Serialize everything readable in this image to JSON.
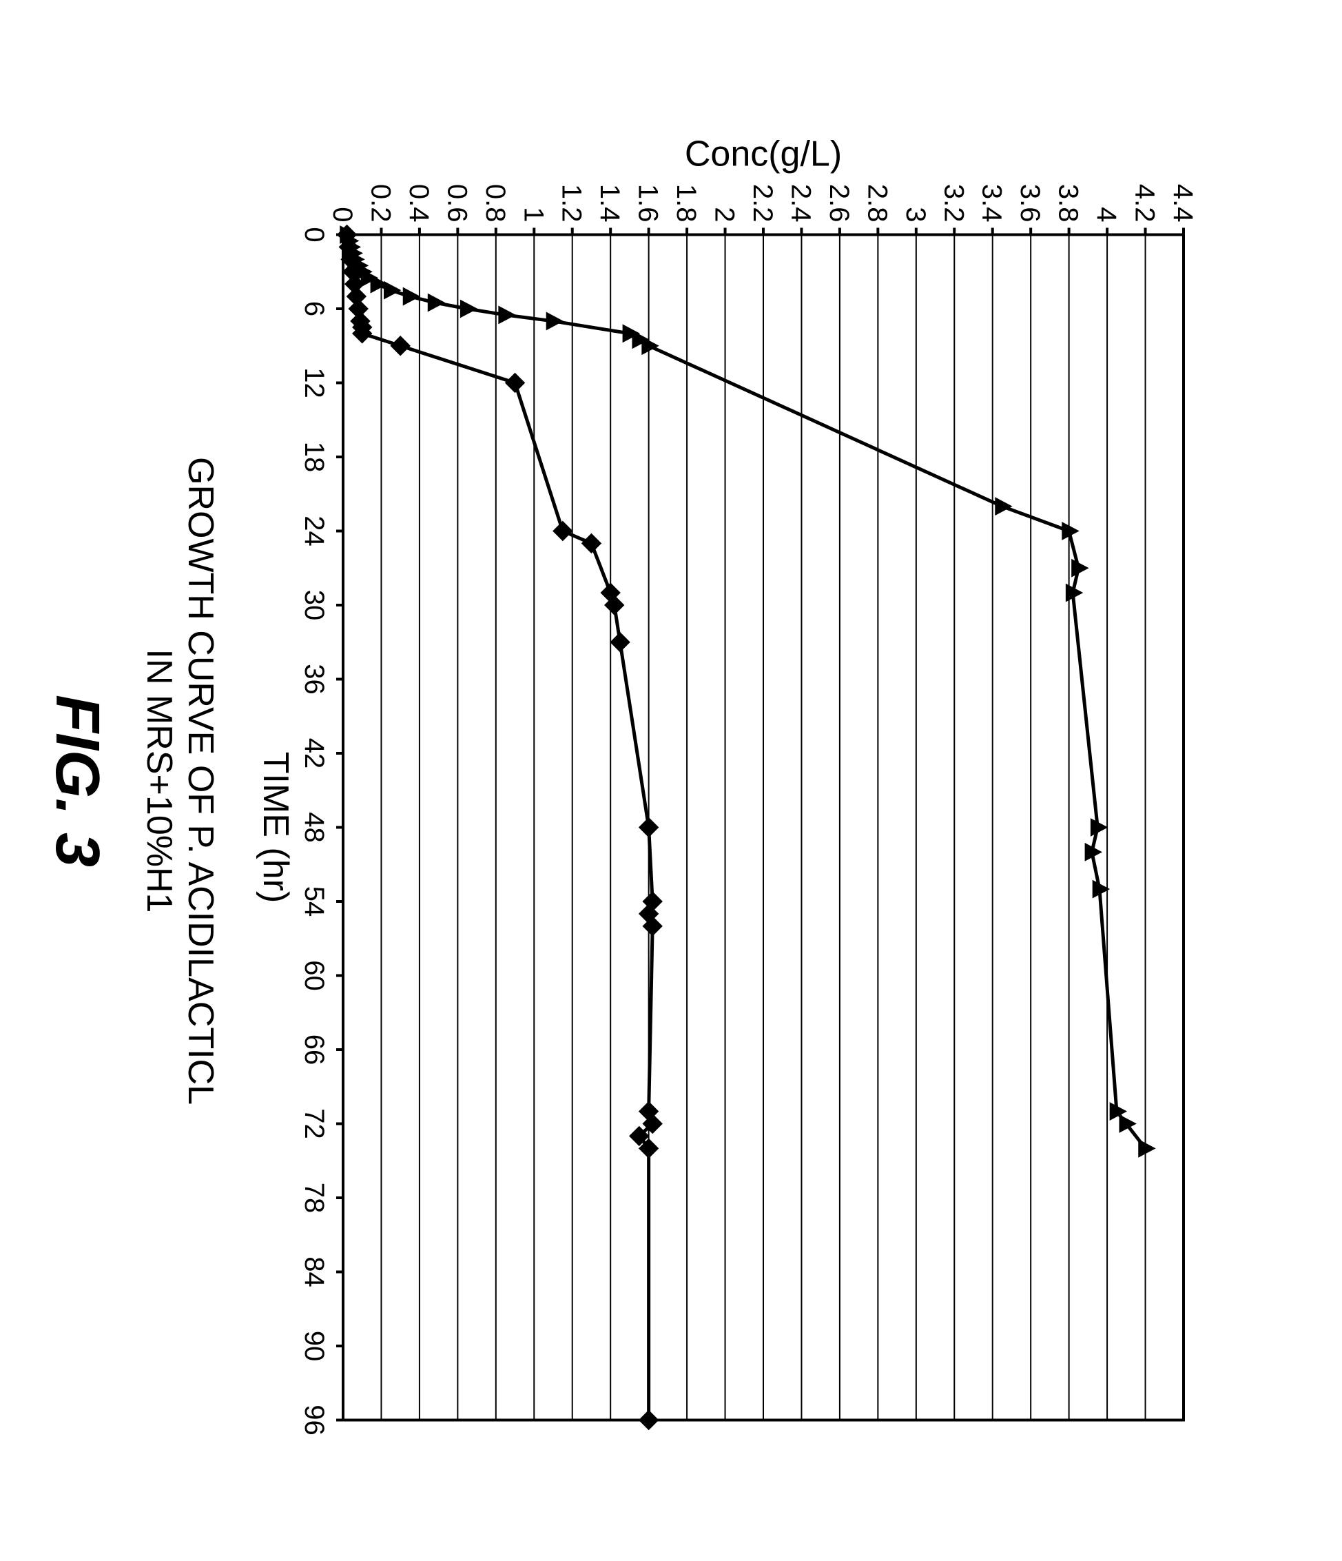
{
  "figure_label": "FIG. 3",
  "caption_line1": "GROWTH CURVE OF P. ACIDILACTICL",
  "caption_line2": "IN MRS+10%H1",
  "chart": {
    "type": "line",
    "xlabel": "TIME (hr)",
    "ylabel": "Conc(g/L)",
    "xlim": [
      0,
      96
    ],
    "ylim": [
      0,
      4.4
    ],
    "xtick_step": 6,
    "ytick_step": 0.2,
    "xticks": [
      0,
      6,
      12,
      18,
      24,
      30,
      36,
      42,
      48,
      54,
      60,
      66,
      72,
      78,
      84,
      90,
      96
    ],
    "yticks": [
      0,
      0.2,
      0.4,
      0.6,
      0.8,
      1,
      1.2,
      1.4,
      1.6,
      1.8,
      2,
      2.2,
      2.4,
      2.6,
      2.8,
      3,
      3.2,
      3.4,
      3.6,
      3.8,
      4,
      4.2,
      4.4
    ],
    "background_color": "#ffffff",
    "grid_color": "#000000",
    "grid_line_width": 2,
    "axis_color": "#000000",
    "axis_line_width": 4,
    "tick_font_size": 40,
    "label_font_size": 52,
    "line_width": 5,
    "marker_size": 14,
    "series": [
      {
        "name": "series-triangle",
        "marker": "triangle",
        "color": "#000000",
        "points": [
          {
            "x": 0,
            "y": 0.02
          },
          {
            "x": 0.5,
            "y": 0.03
          },
          {
            "x": 1,
            "y": 0.04
          },
          {
            "x": 1.5,
            "y": 0.05
          },
          {
            "x": 2,
            "y": 0.06
          },
          {
            "x": 2.5,
            "y": 0.08
          },
          {
            "x": 3,
            "y": 0.1
          },
          {
            "x": 3.5,
            "y": 0.13
          },
          {
            "x": 4,
            "y": 0.18
          },
          {
            "x": 4.5,
            "y": 0.25
          },
          {
            "x": 5,
            "y": 0.35
          },
          {
            "x": 5.5,
            "y": 0.48
          },
          {
            "x": 6,
            "y": 0.65
          },
          {
            "x": 6.5,
            "y": 0.85
          },
          {
            "x": 7,
            "y": 1.1
          },
          {
            "x": 8,
            "y": 1.5
          },
          {
            "x": 8.5,
            "y": 1.55
          },
          {
            "x": 9,
            "y": 1.6
          },
          {
            "x": 22,
            "y": 3.45
          },
          {
            "x": 24,
            "y": 3.8
          },
          {
            "x": 27,
            "y": 3.85
          },
          {
            "x": 29,
            "y": 3.82
          },
          {
            "x": 48,
            "y": 3.95
          },
          {
            "x": 50,
            "y": 3.92
          },
          {
            "x": 53,
            "y": 3.96
          },
          {
            "x": 71,
            "y": 4.05
          },
          {
            "x": 72,
            "y": 4.1
          },
          {
            "x": 74,
            "y": 4.2
          }
        ]
      },
      {
        "name": "series-diamond",
        "marker": "diamond",
        "color": "#000000",
        "points": [
          {
            "x": 0,
            "y": 0.02
          },
          {
            "x": 1,
            "y": 0.03
          },
          {
            "x": 2,
            "y": 0.04
          },
          {
            "x": 3,
            "y": 0.05
          },
          {
            "x": 4,
            "y": 0.06
          },
          {
            "x": 5,
            "y": 0.07
          },
          {
            "x": 6,
            "y": 0.08
          },
          {
            "x": 7,
            "y": 0.09
          },
          {
            "x": 7.5,
            "y": 0.1
          },
          {
            "x": 8,
            "y": 0.1
          },
          {
            "x": 9,
            "y": 0.3
          },
          {
            "x": 12,
            "y": 0.9
          },
          {
            "x": 24,
            "y": 1.15
          },
          {
            "x": 25,
            "y": 1.3
          },
          {
            "x": 29,
            "y": 1.4
          },
          {
            "x": 30,
            "y": 1.42
          },
          {
            "x": 33,
            "y": 1.45
          },
          {
            "x": 48,
            "y": 1.6
          },
          {
            "x": 54,
            "y": 1.62
          },
          {
            "x": 55,
            "y": 1.6
          },
          {
            "x": 56,
            "y": 1.62
          },
          {
            "x": 71,
            "y": 1.6
          },
          {
            "x": 72,
            "y": 1.62
          },
          {
            "x": 73,
            "y": 1.55
          },
          {
            "x": 74,
            "y": 1.6
          },
          {
            "x": 96,
            "y": 1.6
          }
        ]
      }
    ]
  }
}
